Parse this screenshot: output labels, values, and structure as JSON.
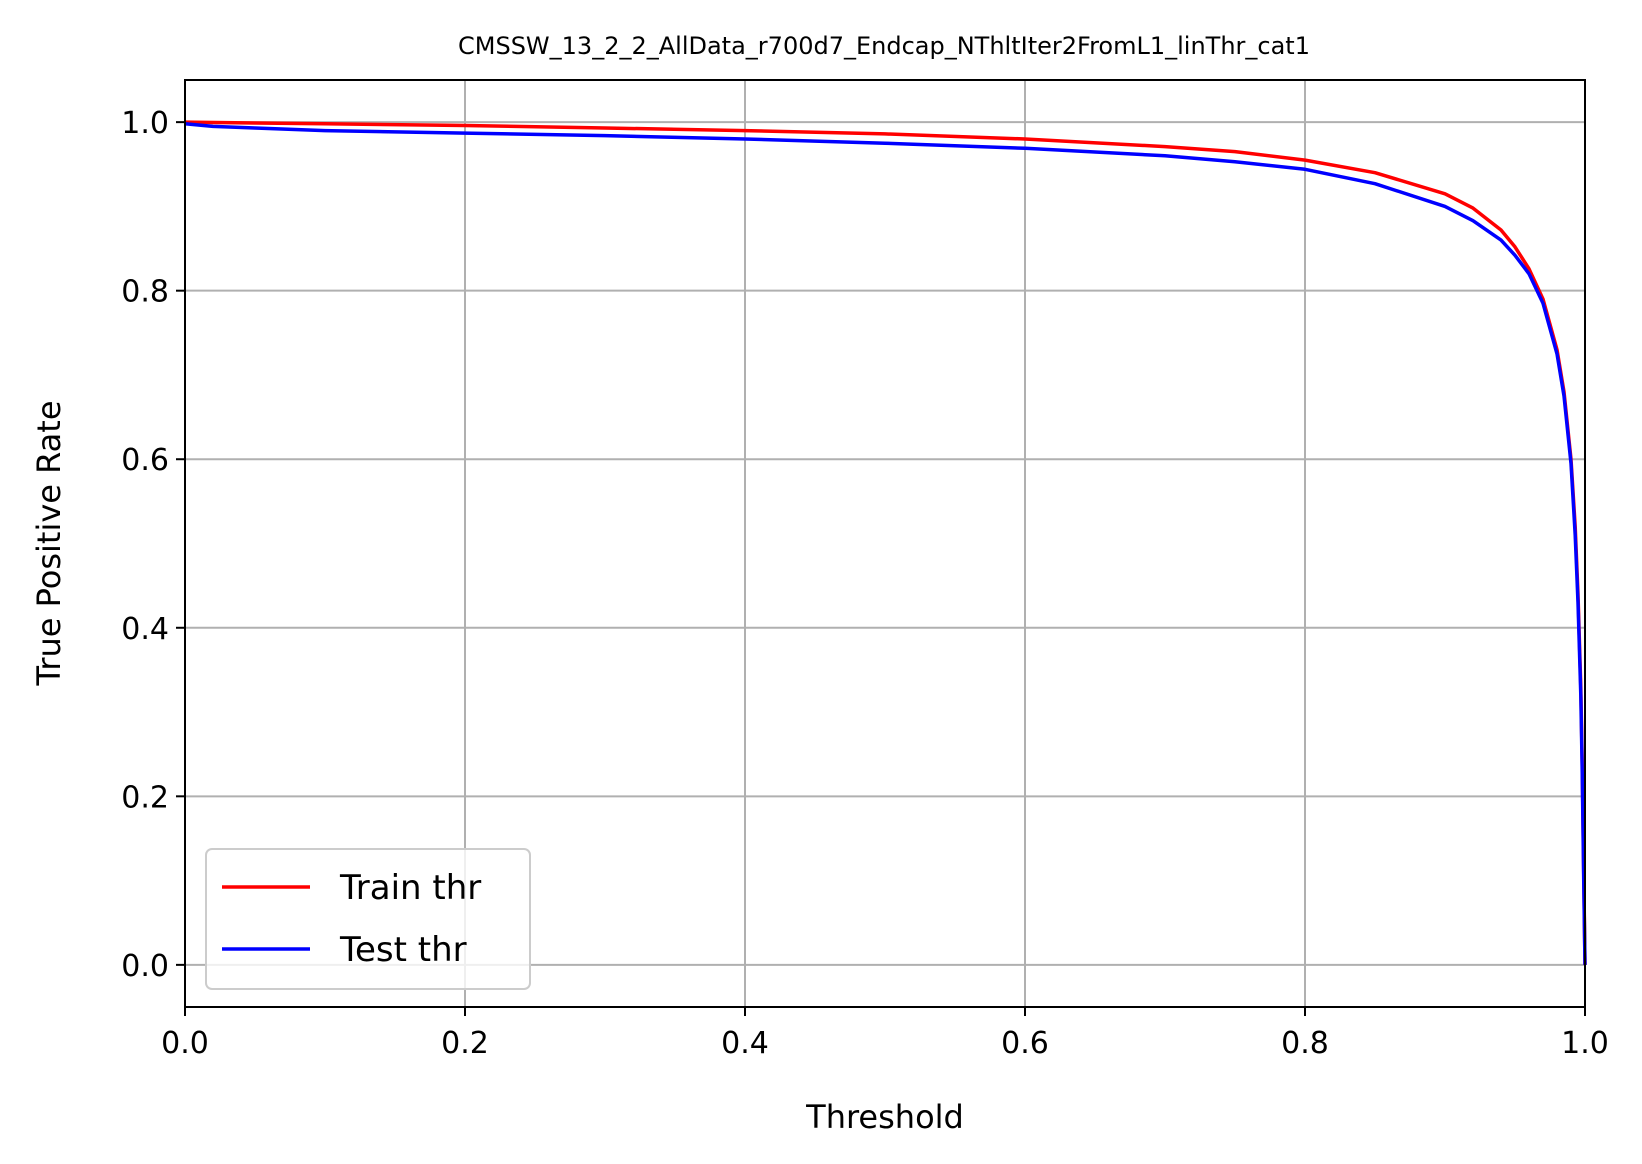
{
  "chart_data": {
    "type": "line",
    "title": "CMSSW_13_2_2_AllData_r700d7_Endcap_NThltIter2FromL1_linThr_cat1",
    "xlabel": "Threshold",
    "ylabel": "True Positive Rate",
    "xlim": [
      0.0,
      1.0
    ],
    "ylim": [
      -0.05,
      1.05
    ],
    "xticks": [
      0.0,
      0.2,
      0.4,
      0.6,
      0.8,
      1.0
    ],
    "xtick_labels": [
      "0.0",
      "0.2",
      "0.4",
      "0.6",
      "0.8",
      "1.0"
    ],
    "yticks": [
      0.0,
      0.2,
      0.4,
      0.6,
      0.8,
      1.0
    ],
    "ytick_labels": [
      "0.0",
      "0.2",
      "0.4",
      "0.6",
      "0.8",
      "1.0"
    ],
    "grid": true,
    "legend_position": "lower-left",
    "series": [
      {
        "name": "Train thr",
        "color": "#ff0000",
        "x": [
          0.0,
          0.05,
          0.1,
          0.2,
          0.3,
          0.4,
          0.5,
          0.6,
          0.7,
          0.75,
          0.8,
          0.85,
          0.9,
          0.92,
          0.94,
          0.95,
          0.96,
          0.97,
          0.98,
          0.985,
          0.99,
          0.993,
          0.995,
          0.997,
          0.998,
          0.999,
          1.0
        ],
        "y": [
          1.0,
          0.999,
          0.998,
          0.996,
          0.993,
          0.99,
          0.986,
          0.98,
          0.971,
          0.965,
          0.955,
          0.94,
          0.915,
          0.898,
          0.872,
          0.852,
          0.826,
          0.79,
          0.73,
          0.68,
          0.6,
          0.52,
          0.44,
          0.33,
          0.24,
          0.12,
          0.0
        ]
      },
      {
        "name": "Test thr",
        "color": "#0000ff",
        "x": [
          0.0,
          0.02,
          0.05,
          0.1,
          0.2,
          0.3,
          0.4,
          0.5,
          0.6,
          0.7,
          0.75,
          0.8,
          0.85,
          0.9,
          0.92,
          0.94,
          0.95,
          0.96,
          0.97,
          0.98,
          0.985,
          0.99,
          0.993,
          0.995,
          0.997,
          0.998,
          0.999,
          1.0
        ],
        "y": [
          0.998,
          0.995,
          0.993,
          0.99,
          0.987,
          0.984,
          0.98,
          0.975,
          0.969,
          0.96,
          0.953,
          0.944,
          0.927,
          0.9,
          0.883,
          0.86,
          0.842,
          0.82,
          0.785,
          0.725,
          0.675,
          0.595,
          0.51,
          0.43,
          0.32,
          0.23,
          0.11,
          0.0
        ]
      }
    ]
  }
}
